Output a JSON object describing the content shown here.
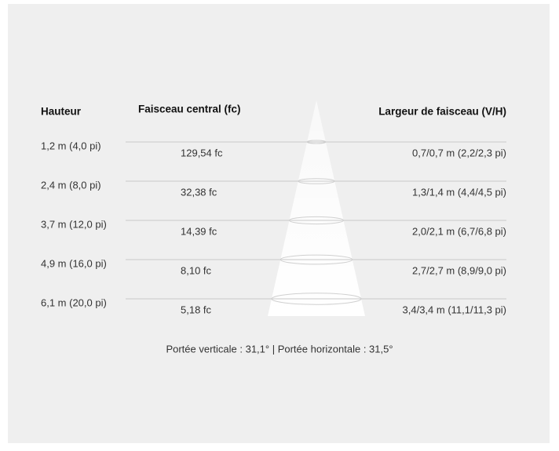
{
  "header": {
    "height": "Hauteur",
    "center_beam": "Faisceau central (fc)",
    "beam_width": "Largeur de faisceau (V/H)"
  },
  "rows": [
    {
      "height": "1,2 m (4,0 pi)",
      "center_beam": "129,54 fc",
      "beam_width": "0,7/0,7 m (2,2/2,3 pi)"
    },
    {
      "height": "2,4 m (8,0 pi)",
      "center_beam": "32,38 fc",
      "beam_width": "1,3/1,4 m (4,4/4,5 pi)"
    },
    {
      "height": "3,7 m (12,0 pi)",
      "center_beam": "14,39 fc",
      "beam_width": "2,0/2,1 m (6,7/6,8 pi)"
    },
    {
      "height": "4,9 m (16,0 pi)",
      "center_beam": "8,10 fc",
      "beam_width": "2,7/2,7 m (8,9/9,0 pi)"
    },
    {
      "height": "6,1 m (20,0 pi)",
      "center_beam": "5,18 fc",
      "beam_width": "3,4/3,4 m (11,1/11,3 pi)"
    }
  ],
  "footer": "Portée verticale : 31,1°  |  Portée horizontale : 31,5°"
}
